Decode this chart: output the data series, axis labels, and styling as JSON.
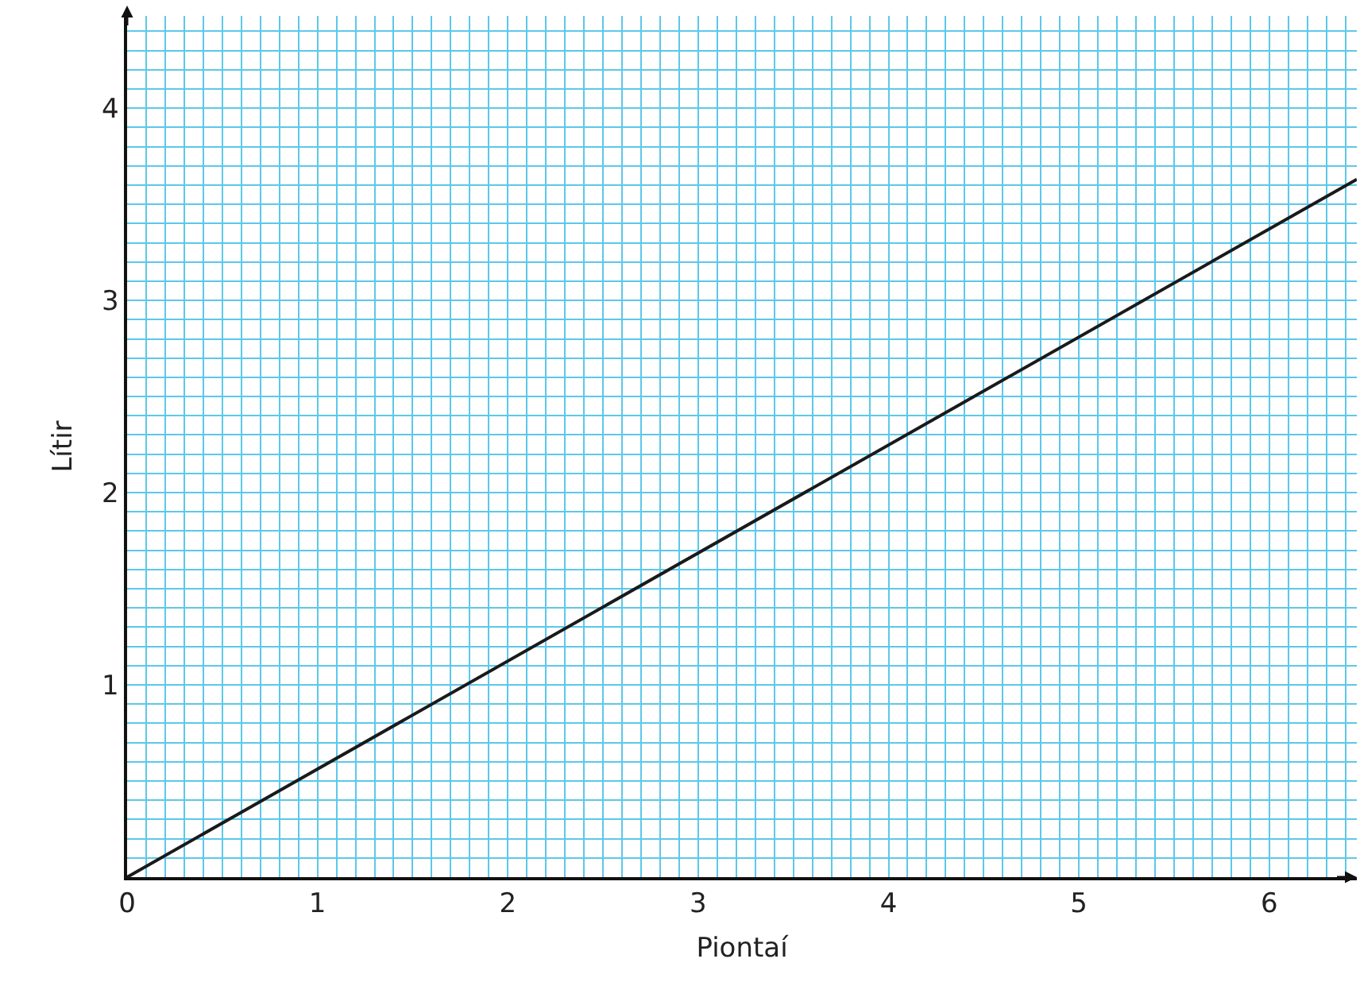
{
  "chart_data": {
    "type": "line",
    "xlabel": "Piontaí",
    "ylabel": "Lítir",
    "x": [
      0,
      6.46
    ],
    "series": [
      {
        "color": "#1a1a1a",
        "values": [
          0,
          3.63
        ]
      }
    ],
    "xlim": [
      0,
      6.46
    ],
    "ylim": [
      0,
      4.48
    ],
    "xticks": [
      0,
      {
        "value": 0.1,
        "label": null
      },
      {
        "value": 0.2,
        "label": null
      },
      {
        "value": 0.3,
        "label": null
      },
      {
        "value": 0.4,
        "label": null
      },
      {
        "value": 0.5,
        "label": null
      },
      {
        "value": 0.6,
        "label": null
      },
      {
        "value": 0.7,
        "label": null
      },
      {
        "value": 0.8,
        "label": null
      },
      {
        "value": 0.9,
        "label": null
      },
      1,
      {
        "value": 1.1,
        "label": null
      },
      {
        "value": 1.2,
        "label": null
      },
      {
        "value": 1.3,
        "label": null
      },
      {
        "value": 1.4,
        "label": null
      },
      {
        "value": 1.5,
        "label": null
      },
      {
        "value": 1.6,
        "label": null
      },
      {
        "value": 1.7,
        "label": null
      },
      {
        "value": 1.8,
        "label": null
      },
      {
        "value": 1.9,
        "label": null
      },
      2,
      {
        "value": 2.1,
        "label": null
      },
      {
        "value": 2.2,
        "label": null
      },
      {
        "value": 2.3,
        "label": null
      },
      {
        "value": 2.4,
        "label": null
      },
      {
        "value": 2.5,
        "label": null
      },
      {
        "value": 2.6,
        "label": null
      },
      {
        "value": 2.7,
        "label": null
      },
      {
        "value": 2.8,
        "label": null
      },
      {
        "value": 2.9,
        "label": null
      },
      3,
      {
        "value": 3.1,
        "label": null
      },
      {
        "value": 3.2,
        "label": null
      },
      {
        "value": 3.3,
        "label": null
      },
      {
        "value": 3.4,
        "label": null
      },
      {
        "value": 3.5,
        "label": null
      },
      {
        "value": 3.6,
        "label": null
      },
      {
        "value": 3.7,
        "label": null
      },
      {
        "value": 3.8,
        "label": null
      },
      {
        "value": 3.9,
        "label": null
      },
      4,
      {
        "value": 4.1,
        "label": null
      },
      {
        "value": 4.2,
        "label": null
      },
      {
        "value": 4.3,
        "label": null
      },
      {
        "value": 4.4,
        "label": null
      },
      {
        "value": 4.5,
        "label": null
      },
      {
        "value": 4.6,
        "label": null
      },
      {
        "value": 4.7,
        "label": null
      },
      {
        "value": 4.8,
        "label": null
      },
      {
        "value": 4.9,
        "label": null
      },
      5,
      {
        "value": 5.1,
        "label": null
      },
      {
        "value": 5.2,
        "label": null
      },
      {
        "value": 5.3,
        "label": null
      },
      {
        "value": 5.4,
        "label": null
      },
      {
        "value": 5.5,
        "label": null
      },
      {
        "value": 5.6,
        "label": null
      },
      {
        "value": 5.7,
        "label": null
      },
      {
        "value": 5.8,
        "label": null
      },
      {
        "value": 5.9,
        "label": null
      },
      6,
      {
        "value": 6.1,
        "label": null
      },
      {
        "value": 6.2,
        "label": null
      },
      {
        "value": 6.3,
        "label": null
      },
      {
        "value": 6.4,
        "label": null
      }
    ],
    "yticks": [
      {
        "value": 0,
        "label": null
      },
      {
        "value": 0.1,
        "label": null
      },
      {
        "value": 0.2,
        "label": null
      },
      {
        "value": 0.3,
        "label": null
      },
      {
        "value": 0.4,
        "label": null
      },
      {
        "value": 0.5,
        "label": null
      },
      {
        "value": 0.6,
        "label": null
      },
      {
        "value": 0.7,
        "label": null
      },
      {
        "value": 0.8,
        "label": null
      },
      {
        "value": 0.9,
        "label": null
      },
      1,
      {
        "value": 1.1,
        "label": null
      },
      {
        "value": 1.2,
        "label": null
      },
      {
        "value": 1.3,
        "label": null
      },
      {
        "value": 1.4,
        "label": null
      },
      {
        "value": 1.5,
        "label": null
      },
      {
        "value": 1.6,
        "label": null
      },
      {
        "value": 1.7,
        "label": null
      },
      {
        "value": 1.8,
        "label": null
      },
      {
        "value": 1.9,
        "label": null
      },
      2,
      {
        "value": 2.1,
        "label": null
      },
      {
        "value": 2.2,
        "label": null
      },
      {
        "value": 2.3,
        "label": null
      },
      {
        "value": 2.4,
        "label": null
      },
      {
        "value": 2.5,
        "label": null
      },
      {
        "value": 2.6,
        "label": null
      },
      {
        "value": 2.7,
        "label": null
      },
      {
        "value": 2.8,
        "label": null
      },
      {
        "value": 2.9,
        "label": null
      },
      3,
      {
        "value": 3.1,
        "label": null
      },
      {
        "value": 3.2,
        "label": null
      },
      {
        "value": 3.3,
        "label": null
      },
      {
        "value": 3.4,
        "label": null
      },
      {
        "value": 3.5,
        "label": null
      },
      {
        "value": 3.6,
        "label": null
      },
      {
        "value": 3.7,
        "label": null
      },
      {
        "value": 3.8,
        "label": null
      },
      {
        "value": 3.9,
        "label": null
      },
      4,
      {
        "value": 4.1,
        "label": null
      },
      {
        "value": 4.2,
        "label": null
      },
      {
        "value": 4.3,
        "label": null
      },
      {
        "value": 4.4,
        "label": null
      }
    ],
    "grid": true,
    "marker": "none",
    "line_style": "solid"
  }
}
